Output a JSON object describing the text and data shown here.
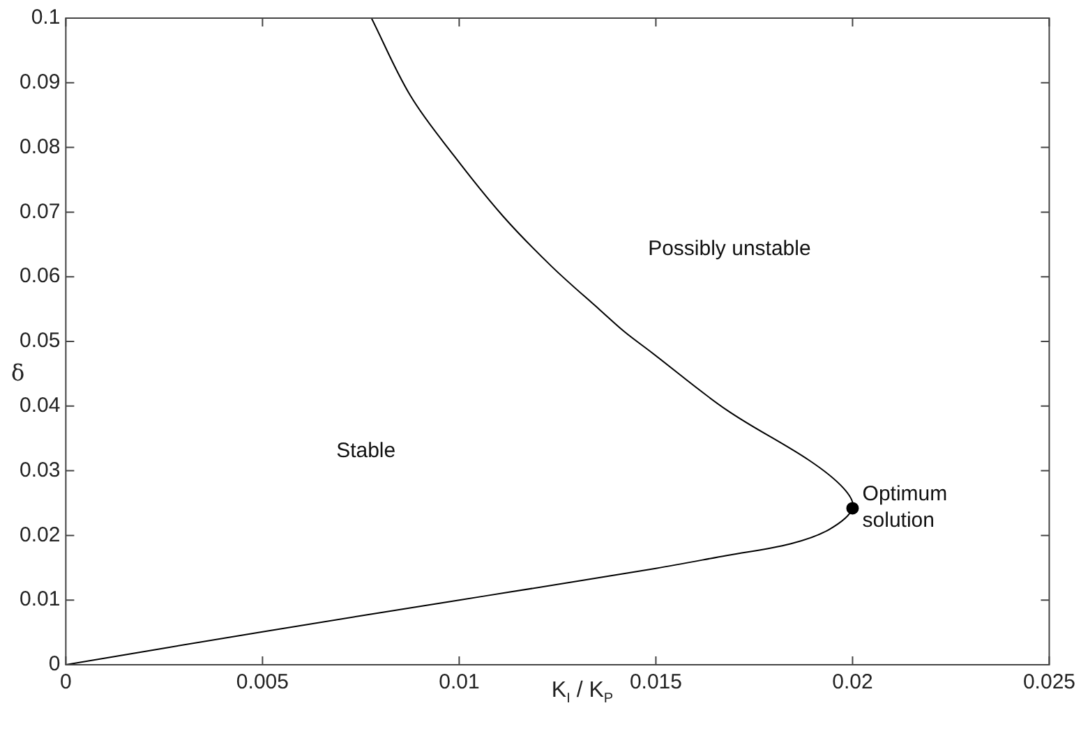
{
  "chart_data": {
    "type": "line",
    "xlabel": "K$_{I}$ / K$_{P}$",
    "ylabel": "δ",
    "series": [
      {
        "color": "#000000",
        "x": [
          0,
          0.005,
          0.01,
          0.01124,
          0.015,
          0.0168,
          0.01842,
          0.0194,
          0.02,
          0.01977,
          0.0189,
          0.0168,
          0.01489,
          0.0142,
          0.01359,
          0.01235,
          0.01111,
          0.00987,
          0.00876,
          0.00777
        ],
        "values": [
          0,
          0.0051,
          0.01,
          0.0112,
          0.0149,
          0.0169,
          0.0187,
          0.0209,
          0.0242,
          0.0273,
          0.0316,
          0.0394,
          0.0483,
          0.0515,
          0.0548,
          0.0616,
          0.0694,
          0.0787,
          0.088,
          0.1
        ]
      },
      {
        "type": "scatter",
        "color": "#000000",
        "x": [
          0.02
        ],
        "values": [
          0.0242
        ],
        "marker": "circle"
      }
    ],
    "xlim": [
      0,
      0.025
    ],
    "xticks": [
      0,
      0.005,
      0.01,
      0.015,
      0.02,
      0.025
    ],
    "ylim": [
      0,
      0.1
    ],
    "yticks": [
      0,
      0.01,
      0.02,
      0.03,
      0.04,
      0.05,
      0.06,
      0.07,
      0.08,
      0.09,
      0.1
    ],
    "grid": false,
    "legend": false,
    "annotations": [
      "Stable",
      "Possibly unstable",
      "Optimum\nsolution"
    ]
  }
}
